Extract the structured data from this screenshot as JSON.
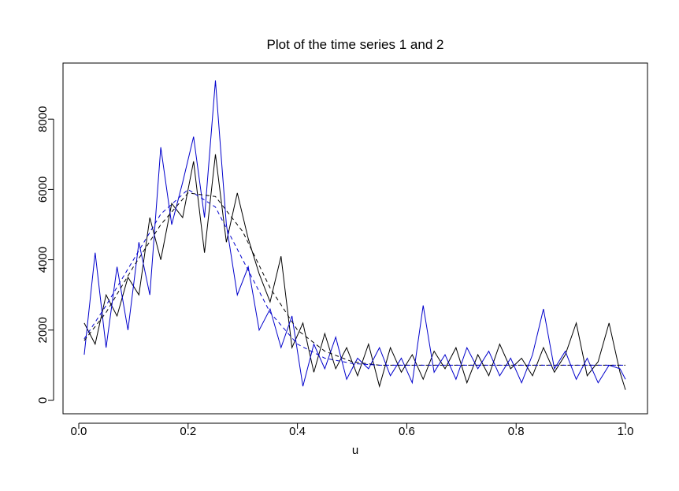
{
  "chart_data": {
    "type": "line",
    "title": "Plot of the time series 1 and 2",
    "x_label": "u",
    "x": [
      0.01,
      0.03,
      0.05,
      0.07,
      0.09,
      0.11,
      0.13,
      0.15,
      0.17,
      0.19,
      0.21,
      0.23,
      0.25,
      0.27,
      0.29,
      0.31,
      0.33,
      0.35,
      0.37,
      0.39,
      0.41,
      0.43,
      0.45,
      0.47,
      0.49,
      0.51,
      0.53,
      0.55,
      0.57,
      0.59,
      0.61,
      0.63,
      0.65,
      0.67,
      0.69,
      0.71,
      0.73,
      0.75,
      0.77,
      0.79,
      0.81,
      0.83,
      0.85,
      0.87,
      0.89,
      0.91,
      0.93,
      0.95,
      0.97,
      0.99,
      1.0
    ],
    "series": [
      {
        "color": "#000000",
        "values": [
          2200,
          1600,
          3000,
          2400,
          3500,
          3000,
          5200,
          4000,
          5600,
          5200,
          6800,
          4200,
          7000,
          4500,
          5900,
          4600,
          3600,
          2800,
          4100,
          1500,
          2200,
          800,
          1900,
          900,
          1500,
          700,
          1600,
          400,
          1500,
          800,
          1300,
          600,
          1400,
          900,
          1500,
          500,
          1300,
          700,
          1600,
          900,
          1200,
          700,
          1500,
          800,
          1300,
          2200,
          700,
          1100,
          2200,
          800,
          300
        ]
      },
      {
        "color": "#0000cc",
        "values": [
          1300,
          4200,
          1500,
          3800,
          2000,
          4500,
          3000,
          7200,
          5000,
          6200,
          7500,
          5200,
          9100,
          5000,
          3000,
          3800,
          2000,
          2600,
          1500,
          2400,
          400,
          1600,
          900,
          1800,
          600,
          1200,
          900,
          1500,
          700,
          1200,
          500,
          2700,
          800,
          1300,
          600,
          1500,
          900,
          1400,
          700,
          1200,
          500,
          1300,
          2600,
          900,
          1400,
          600,
          1200,
          500,
          1000,
          900,
          600
        ]
      },
      {
        "color": "#000000",
        "dashed": true,
        "x": [
          0.01,
          0.05,
          0.1,
          0.15,
          0.2,
          0.25,
          0.3,
          0.35,
          0.4,
          0.45,
          0.5,
          0.55,
          0.6,
          0.7,
          0.8,
          0.9,
          1.0
        ],
        "values": [
          1700,
          2500,
          3800,
          5000,
          5900,
          5800,
          4800,
          3200,
          2000,
          1400,
          1100,
          1000,
          1000,
          1000,
          1000,
          1000,
          1000
        ]
      },
      {
        "color": "#0000cc",
        "dashed": true,
        "x": [
          0.01,
          0.05,
          0.1,
          0.15,
          0.2,
          0.25,
          0.3,
          0.35,
          0.4,
          0.45,
          0.5,
          0.55,
          0.6,
          0.7,
          0.8,
          0.9,
          1.0
        ],
        "values": [
          1750,
          2700,
          4000,
          5300,
          6000,
          5500,
          4000,
          2500,
          1600,
          1200,
          1050,
          1000,
          1000,
          1000,
          1000,
          1000,
          1000
        ]
      }
    ],
    "xlim": [
      -0.0288,
      1.0403
    ],
    "xticks": [
      {
        "value": 0,
        "label": "0.0"
      },
      {
        "value": 0.2,
        "label": "0.2"
      },
      {
        "value": 0.4,
        "label": "0.4"
      },
      {
        "value": 0.6,
        "label": "0.6"
      },
      {
        "value": 0.8,
        "label": "0.8"
      },
      {
        "value": 1,
        "label": "1.0"
      }
    ],
    "ylim": [
      -381,
      9596
    ],
    "yticks": [
      0,
      2000,
      4000,
      6000,
      8000
    ],
    "grid": false
  }
}
